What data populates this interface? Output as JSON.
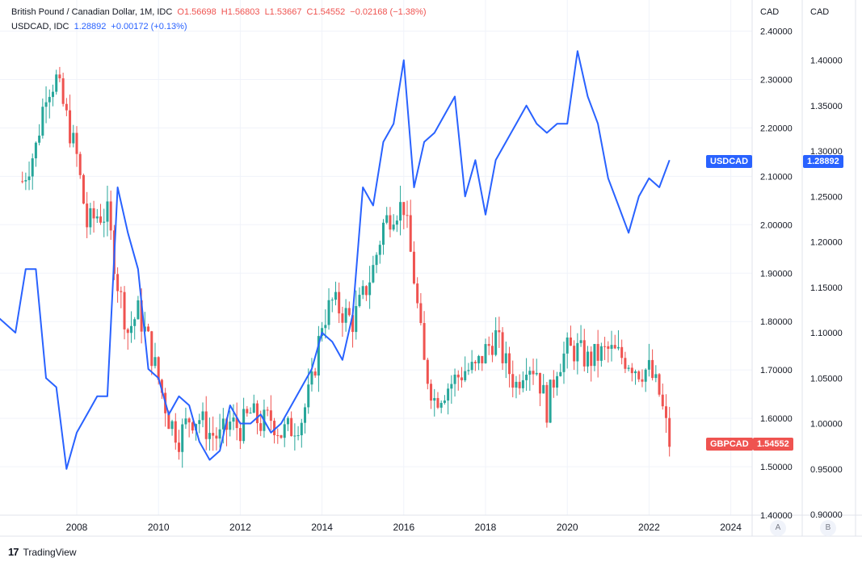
{
  "legend": {
    "main": {
      "symbol": "British Pound / Canadian Dollar, 1M, IDC",
      "open": "O1.56698",
      "high": "H1.56803",
      "low": "L1.53667",
      "close": "C1.54552",
      "change": "−0.02168 (−1.38%)"
    },
    "compare": {
      "symbol": "USDCAD, IDC",
      "last": "1.28892",
      "change": "+0.00172 (+0.13%)"
    }
  },
  "axes": {
    "left_unit": "CAD",
    "right_unit": "CAD",
    "left_scale_button": "A",
    "right_scale_button": "B"
  },
  "price_tags": {
    "usdcad_name": "USDCAD",
    "usdcad_value": "1.28892",
    "gbpcad_name": "GBPCAD",
    "gbpcad_value": "1.54552"
  },
  "footer": {
    "brand": "TradingView",
    "logo": "17"
  },
  "colors": {
    "up": "#26a69a",
    "down": "#ef5350",
    "line": "#2962ff",
    "grid": "#f0f3fa"
  },
  "chart_data": {
    "type": "line",
    "x_ticks": [
      "2008",
      "2010",
      "2012",
      "2014",
      "2016",
      "2018",
      "2020",
      "2022",
      "2024"
    ],
    "y_left": {
      "label": "CAD",
      "ticks": [
        1.4,
        1.5,
        1.6,
        1.7,
        1.8,
        1.9,
        2.0,
        2.1,
        2.2,
        2.3,
        2.4
      ],
      "range": [
        1.4,
        2.43
      ]
    },
    "y_right": {
      "label": "CAD",
      "ticks": [
        0.9,
        0.95,
        1.0,
        1.05,
        1.1,
        1.15,
        1.2,
        1.25,
        1.3,
        1.35,
        1.4
      ],
      "range": [
        0.9,
        1.41
      ]
    },
    "grid": true,
    "series": [
      {
        "name": "GBPCAD",
        "kind": "candlestick-monthly",
        "axis": "left",
        "approx_close": [
          [
            2006.67,
            2.09
          ],
          [
            2007.0,
            2.16
          ],
          [
            2007.25,
            2.28
          ],
          [
            2007.5,
            2.3
          ],
          [
            2007.75,
            2.22
          ],
          [
            2008.0,
            2.14
          ],
          [
            2008.25,
            2.0
          ],
          [
            2008.5,
            2.02
          ],
          [
            2008.75,
            2.02
          ],
          [
            2009.0,
            1.88
          ],
          [
            2009.25,
            1.78
          ],
          [
            2009.5,
            1.82
          ],
          [
            2009.75,
            1.76
          ],
          [
            2010.0,
            1.68
          ],
          [
            2010.25,
            1.6
          ],
          [
            2010.5,
            1.56
          ],
          [
            2010.75,
            1.6
          ],
          [
            2011.0,
            1.6
          ],
          [
            2011.25,
            1.57
          ],
          [
            2011.5,
            1.56
          ],
          [
            2011.75,
            1.59
          ],
          [
            2012.0,
            1.58
          ],
          [
            2012.25,
            1.61
          ],
          [
            2012.5,
            1.59
          ],
          [
            2012.75,
            1.6
          ],
          [
            2013.0,
            1.57
          ],
          [
            2013.25,
            1.58
          ],
          [
            2013.5,
            1.6
          ],
          [
            2013.75,
            1.67
          ],
          [
            2014.0,
            1.8
          ],
          [
            2014.25,
            1.84
          ],
          [
            2014.5,
            1.82
          ],
          [
            2014.75,
            1.8
          ],
          [
            2015.0,
            1.85
          ],
          [
            2015.25,
            1.91
          ],
          [
            2015.5,
            2.0
          ],
          [
            2015.75,
            2.03
          ],
          [
            2016.0,
            2.04
          ],
          [
            2016.25,
            1.89
          ],
          [
            2016.5,
            1.71
          ],
          [
            2016.75,
            1.64
          ],
          [
            2017.0,
            1.66
          ],
          [
            2017.25,
            1.68
          ],
          [
            2017.5,
            1.7
          ],
          [
            2017.75,
            1.7
          ],
          [
            2018.0,
            1.74
          ],
          [
            2018.25,
            1.77
          ],
          [
            2018.5,
            1.71
          ],
          [
            2018.75,
            1.67
          ],
          [
            2019.0,
            1.72
          ],
          [
            2019.25,
            1.7
          ],
          [
            2019.5,
            1.62
          ],
          [
            2019.75,
            1.71
          ],
          [
            2020.0,
            1.74
          ],
          [
            2020.25,
            1.74
          ],
          [
            2020.5,
            1.72
          ],
          [
            2020.75,
            1.73
          ],
          [
            2021.0,
            1.74
          ],
          [
            2021.25,
            1.73
          ],
          [
            2021.5,
            1.72
          ],
          [
            2021.75,
            1.7
          ],
          [
            2022.0,
            1.7
          ],
          [
            2022.25,
            1.65
          ],
          [
            2022.5,
            1.55
          ]
        ]
      },
      {
        "name": "USDCAD",
        "kind": "line",
        "axis": "right",
        "points": [
          [
            2006.0,
            1.12
          ],
          [
            2006.25,
            1.11
          ],
          [
            2006.5,
            1.1
          ],
          [
            2006.75,
            1.17
          ],
          [
            2007.0,
            1.17
          ],
          [
            2007.25,
            1.05
          ],
          [
            2007.5,
            1.04
          ],
          [
            2007.75,
            0.95
          ],
          [
            2008.0,
            0.99
          ],
          [
            2008.25,
            1.01
          ],
          [
            2008.5,
            1.03
          ],
          [
            2008.75,
            1.03
          ],
          [
            2009.0,
            1.26
          ],
          [
            2009.25,
            1.21
          ],
          [
            2009.5,
            1.17
          ],
          [
            2009.75,
            1.06
          ],
          [
            2010.0,
            1.05
          ],
          [
            2010.25,
            1.01
          ],
          [
            2010.5,
            1.03
          ],
          [
            2010.75,
            1.02
          ],
          [
            2011.0,
            0.98
          ],
          [
            2011.25,
            0.96
          ],
          [
            2011.5,
            0.97
          ],
          [
            2011.75,
            1.02
          ],
          [
            2012.0,
            1.0
          ],
          [
            2012.25,
            1.0
          ],
          [
            2012.5,
            1.01
          ],
          [
            2012.75,
            0.99
          ],
          [
            2013.0,
            1.0
          ],
          [
            2013.25,
            1.02
          ],
          [
            2013.5,
            1.04
          ],
          [
            2013.75,
            1.06
          ],
          [
            2014.0,
            1.1
          ],
          [
            2014.25,
            1.09
          ],
          [
            2014.5,
            1.07
          ],
          [
            2014.75,
            1.12
          ],
          [
            2015.0,
            1.26
          ],
          [
            2015.25,
            1.24
          ],
          [
            2015.5,
            1.31
          ],
          [
            2015.75,
            1.33
          ],
          [
            2016.0,
            1.4
          ],
          [
            2016.25,
            1.26
          ],
          [
            2016.5,
            1.31
          ],
          [
            2016.75,
            1.32
          ],
          [
            2017.0,
            1.34
          ],
          [
            2017.25,
            1.36
          ],
          [
            2017.5,
            1.25
          ],
          [
            2017.75,
            1.29
          ],
          [
            2018.0,
            1.23
          ],
          [
            2018.25,
            1.29
          ],
          [
            2018.5,
            1.31
          ],
          [
            2018.75,
            1.33
          ],
          [
            2019.0,
            1.35
          ],
          [
            2019.25,
            1.33
          ],
          [
            2019.5,
            1.32
          ],
          [
            2019.75,
            1.33
          ],
          [
            2020.0,
            1.33
          ],
          [
            2020.25,
            1.41
          ],
          [
            2020.5,
            1.36
          ],
          [
            2020.75,
            1.33
          ],
          [
            2021.0,
            1.27
          ],
          [
            2021.25,
            1.24
          ],
          [
            2021.5,
            1.21
          ],
          [
            2021.75,
            1.25
          ],
          [
            2022.0,
            1.27
          ],
          [
            2022.25,
            1.26
          ],
          [
            2022.5,
            1.29
          ]
        ]
      }
    ]
  }
}
